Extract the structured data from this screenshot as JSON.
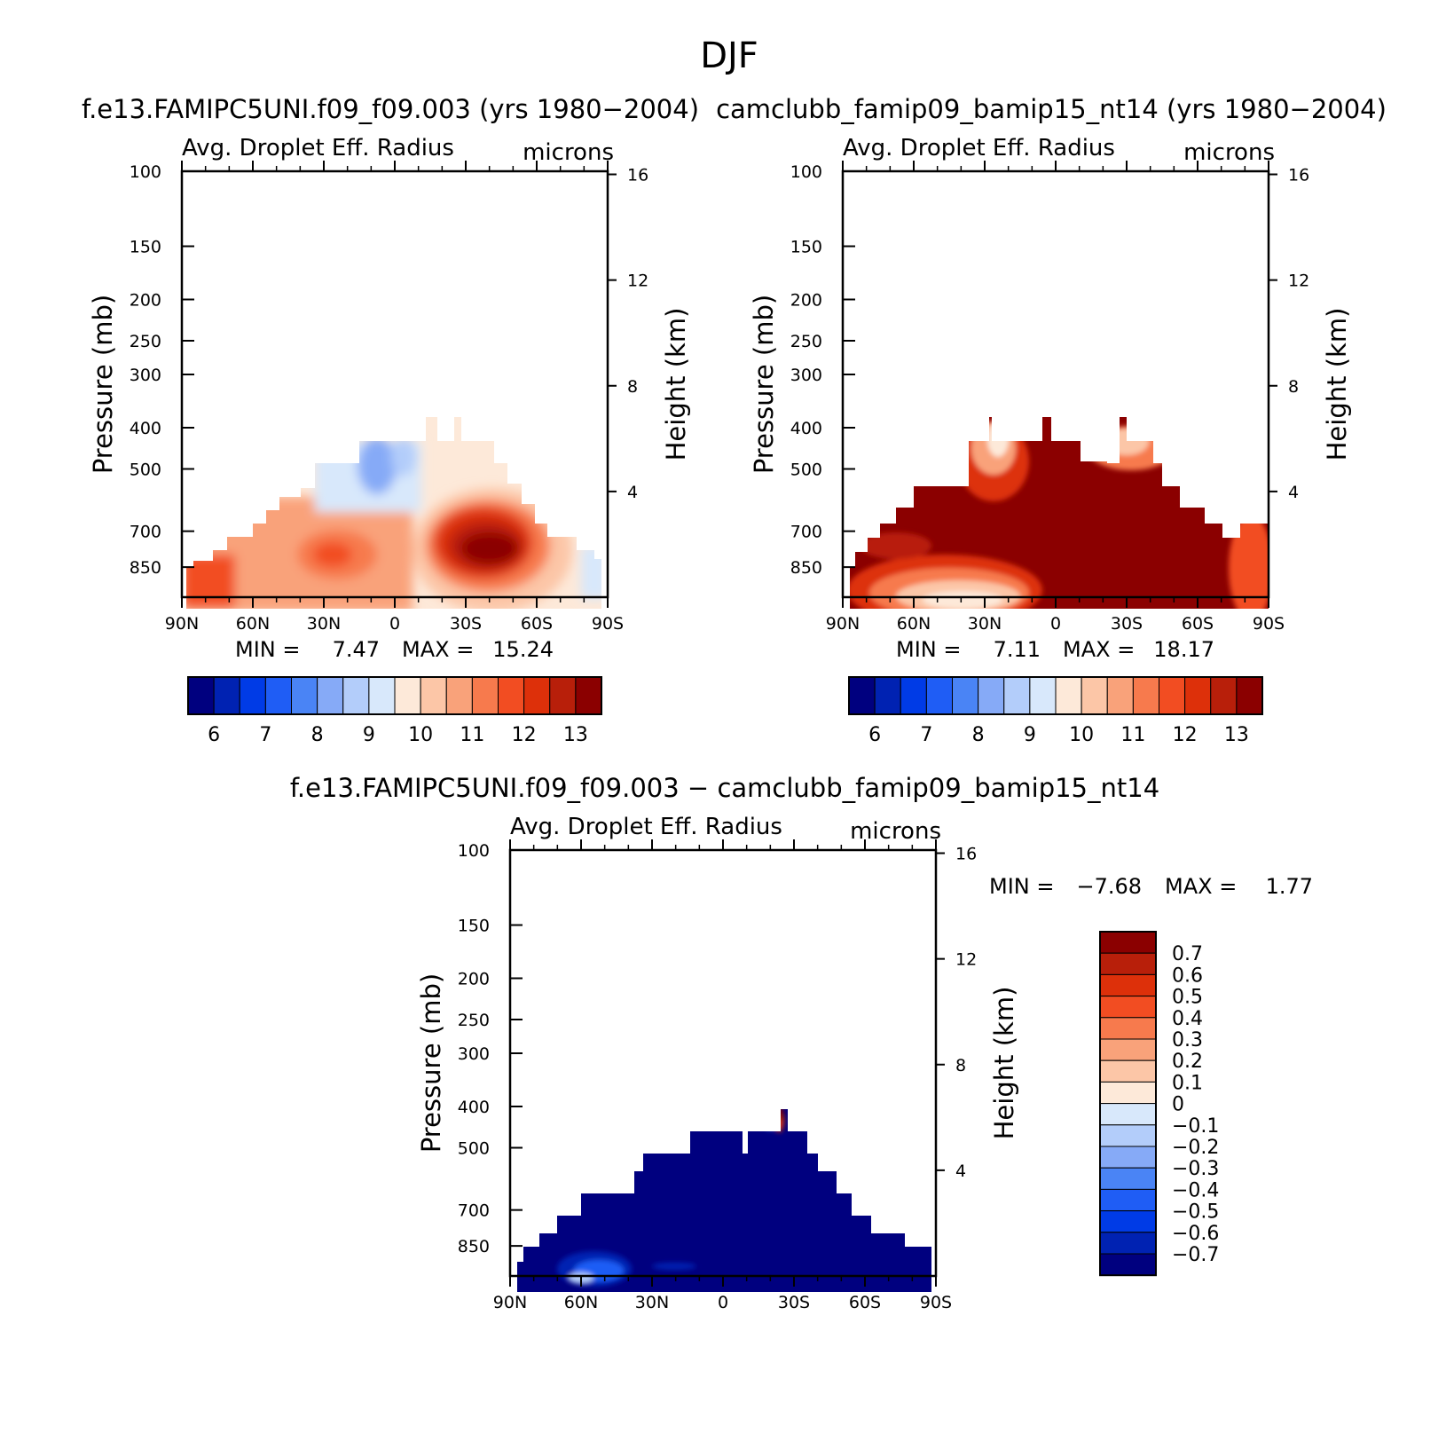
{
  "figure_title": "DJF",
  "colors": {
    "abs_scale": [
      "#00007f",
      "#0022b2",
      "#003be6",
      "#1f5df5",
      "#4a84f5",
      "#86aaf7",
      "#b3cdfa",
      "#d8e8fb",
      "#fde9d9",
      "#fcc6a7",
      "#f9a27a",
      "#f77a4d",
      "#f24d22",
      "#dd300a",
      "#b81f0a",
      "#8b0000"
    ],
    "diff_scale": [
      "#8b0000",
      "#b81f0a",
      "#dd300a",
      "#f24d22",
      "#f77a4d",
      "#f9a27a",
      "#fcc6a7",
      "#fde9d9",
      "#d8e8fb",
      "#b3cdfa",
      "#86aaf7",
      "#4a84f5",
      "#1f5df5",
      "#003be6",
      "#0022b2",
      "#00007f"
    ]
  },
  "chart_data": [
    {
      "type": "heatmap",
      "id": "panel1",
      "run_title": "f.e13.FAMIPC5UNI.f09_f09.003 (yrs 1980−2004)",
      "variable": "Avg. Droplet Eff. Radius",
      "units": "microns",
      "xlabel": "",
      "ylabel": "Pressure (mb)",
      "ylabel_right": "Height (km)",
      "x_ticks": [
        "90N",
        "60N",
        "30N",
        "0",
        "30S",
        "60S",
        "90S"
      ],
      "y_ticks": [
        "100",
        "150",
        "200",
        "250",
        "300",
        "400",
        "500",
        "700",
        "850"
      ],
      "right_ticks": [
        "16",
        "12",
        "8",
        "4"
      ],
      "min_label": "MIN =",
      "min": "7.47",
      "max_label": "MAX =",
      "max": "15.24",
      "colorbar_labels": [
        "6",
        "7",
        "8",
        "9",
        "10",
        "11",
        "12",
        "13"
      ],
      "features": [
        "cloud-layer fields mostly 9-11 microns below ~400 mb",
        "maximum 13-15 microns near 30S between 600 and 800 mb",
        "secondary maximum ~12 microns near 30N at 750 mb",
        "minimum 7-8 microns near 15N at 400-500 mb"
      ]
    },
    {
      "type": "heatmap",
      "id": "panel2",
      "run_title": "camclubb_famip09_bamip15_nt14 (yrs 1980−2004)",
      "variable": "Avg. Droplet Eff. Radius",
      "units": "microns",
      "xlabel": "",
      "ylabel": "Pressure (mb)",
      "ylabel_right": "Height (km)",
      "x_ticks": [
        "90N",
        "60N",
        "30N",
        "0",
        "30S",
        "60S",
        "90S"
      ],
      "y_ticks": [
        "100",
        "150",
        "200",
        "250",
        "300",
        "400",
        "500",
        "700",
        "850"
      ],
      "right_ticks": [
        "16",
        "12",
        "8",
        "4"
      ],
      "min_label": "MIN =",
      "min": "7.11",
      "max_label": "MAX =",
      "max": "18.17",
      "colorbar_labels": [
        "6",
        "7",
        "8",
        "9",
        "10",
        "11",
        "12",
        "13"
      ],
      "features": [
        "field largely above 13 microns",
        "lower values 9-12 microns near 60N-30N surface and near 30N/30S at 400 mb"
      ]
    },
    {
      "type": "heatmap",
      "id": "panel3",
      "run_title": "f.e13.FAMIPC5UNI.f09_f09.003 − camclubb_famip09_bamip15_nt14",
      "variable": "Avg. Droplet Eff. Radius",
      "units": "microns",
      "xlabel": "",
      "ylabel": "Pressure (mb)",
      "ylabel_right": "Height (km)",
      "x_ticks": [
        "90N",
        "60N",
        "30N",
        "0",
        "30S",
        "60S",
        "90S"
      ],
      "y_ticks": [
        "100",
        "150",
        "200",
        "250",
        "300",
        "400",
        "500",
        "700",
        "850"
      ],
      "right_ticks": [
        "16",
        "12",
        "8",
        "4"
      ],
      "min_label": "MIN =",
      "min": "−7.68",
      "max_label": "MAX =",
      "max": "1.77",
      "colorbar_labels": [
        "0.7",
        "0.6",
        "0.5",
        "0.4",
        "0.3",
        "0.2",
        "0.1",
        "0",
        "−0.1",
        "−0.2",
        "−0.3",
        "−0.4",
        "−0.5",
        "−0.6",
        "−0.7"
      ],
      "features": [
        "difference below −0.7 almost everywhere",
        "small positive patch near 20S at 350-400 mb"
      ]
    }
  ]
}
